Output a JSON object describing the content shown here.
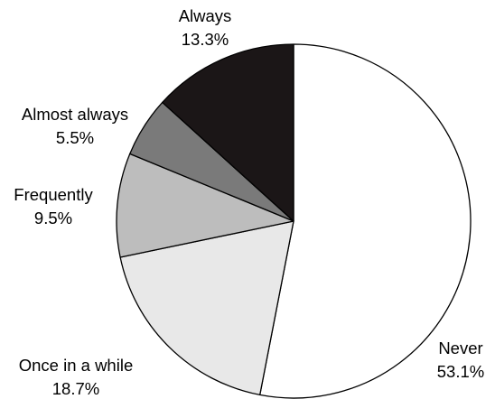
{
  "chart_data": {
    "type": "pie",
    "title": "",
    "start_angle_deg": 0,
    "direction": "clockwise",
    "slices": [
      {
        "label": "Never",
        "value": 53.1,
        "value_label": "53.1%",
        "color": "#ffffff"
      },
      {
        "label": "Once in a while",
        "value": 18.7,
        "value_label": "18.7%",
        "color": "#e8e8e8"
      },
      {
        "label": "Frequently",
        "value": 9.5,
        "value_label": "9.5%",
        "color": "#bdbdbd"
      },
      {
        "label": "Almost always",
        "value": 5.5,
        "value_label": "5.5%",
        "color": "#7a7a7a"
      },
      {
        "label": "Always",
        "value": 13.3,
        "value_label": "13.3%",
        "color": "#1b1617"
      }
    ]
  }
}
